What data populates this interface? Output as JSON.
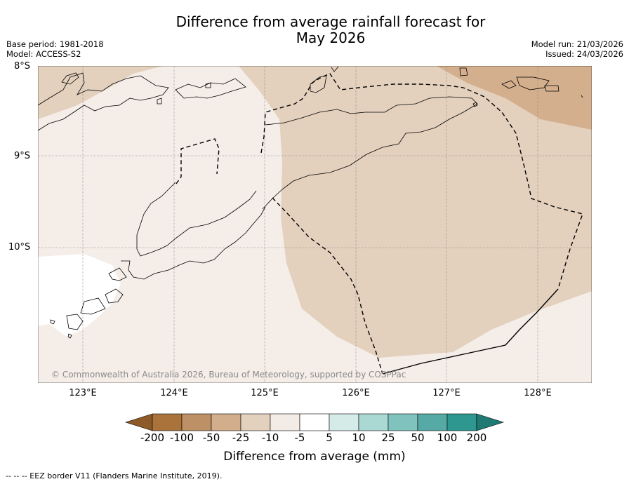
{
  "title_line1": "Difference from average rainfall forecast for",
  "title_line2": "May 2026",
  "meta_left": {
    "base_period": "Base period: 1981-2018",
    "model": "Model: ACCESS-S2"
  },
  "meta_right": {
    "model_run": "Model run: 21/03/2026",
    "issued": "Issued: 24/03/2026"
  },
  "copyright": "© Commonwealth of Australia 2026, Bureau of Meteorology, supported by COSPPac",
  "lat_labels": [
    "8°S",
    "9°S",
    "10°S"
  ],
  "lon_labels": [
    "123°E",
    "124°E",
    "125°E",
    "126°E",
    "127°E",
    "128°E"
  ],
  "colorbar": {
    "title": "Difference from average (mm)",
    "ticks": [
      "-200",
      "-100",
      "-50",
      "-25",
      "-10",
      "-5",
      "5",
      "10",
      "25",
      "50",
      "100",
      "200"
    ],
    "colors": [
      "#a9733b",
      "#be9065",
      "#d2ae8d",
      "#e3d0bd",
      "#f3ebe5",
      "#ffffff",
      "#d4ebe8",
      "#aad8d3",
      "#80c2bd",
      "#56aaa6",
      "#2d9790"
    ],
    "under_color": "#8e5a28",
    "over_color": "#1f7a74"
  },
  "footnote": "--  --  -- EEZ border V11 (Flanders Marine Institute, 2019)."
}
